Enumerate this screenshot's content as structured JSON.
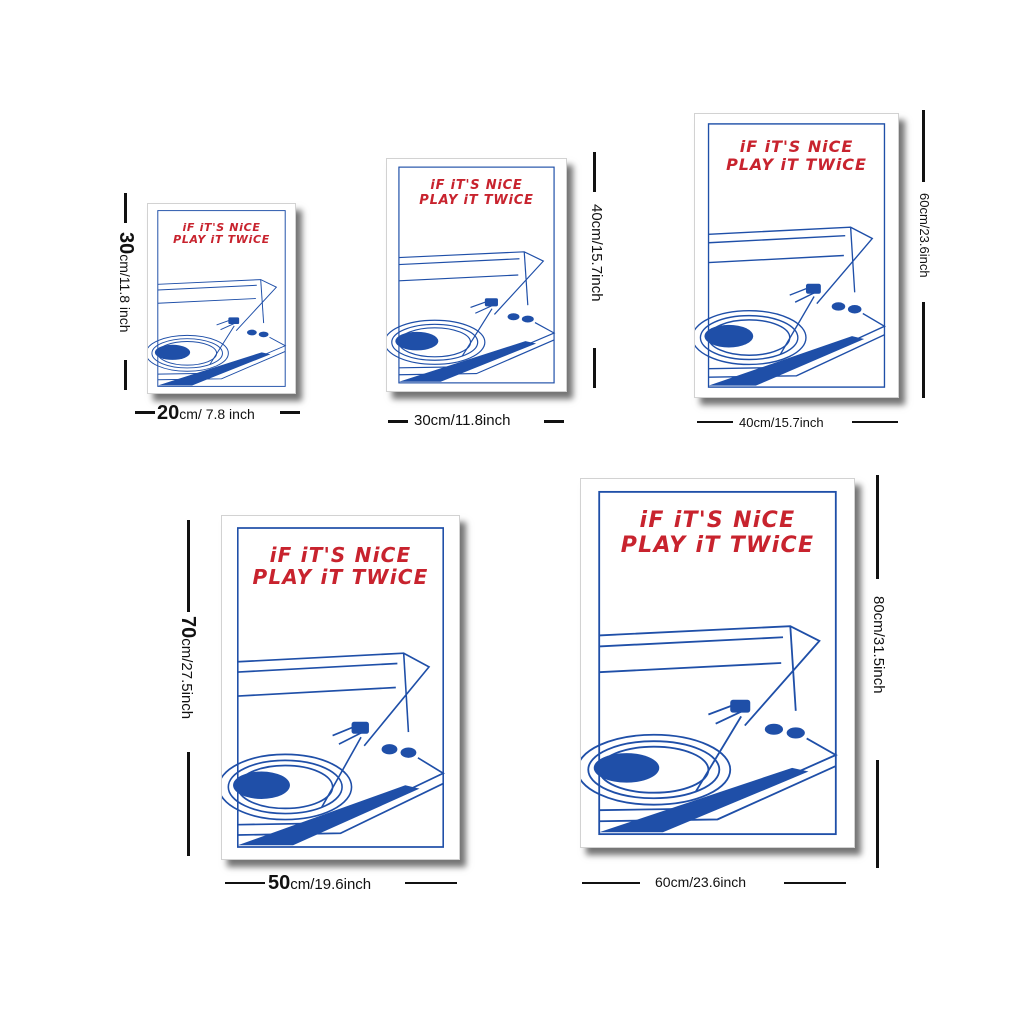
{
  "quote": {
    "line1": "iF iT'S NiCE",
    "line2": "PLAY iT TWiCE"
  },
  "colors": {
    "ink_red": "#c8232e",
    "ink_blue": "#1f4fa8",
    "page_bg": "#ffffff"
  },
  "posters": [
    {
      "id": "20x30",
      "height_big": "30",
      "height_small": "cm/11.8 inch",
      "width_big": "20",
      "width_small": "cm/ 7.8 inch"
    },
    {
      "id": "30x40",
      "height_label": "40cm/15.7inch",
      "width_label": "30cm/11.8inch"
    },
    {
      "id": "40x60",
      "height_label": "60cm/23.6inch",
      "width_label": "40cm/15.7inch"
    },
    {
      "id": "50x70",
      "height_big": "70",
      "height_small": "cm/27.5inch",
      "width_big": "50",
      "width_small": "cm/19.6inch"
    },
    {
      "id": "60x80",
      "height_label": "80cm/31.5inch",
      "width_label": "60cm/23.6inch"
    }
  ]
}
